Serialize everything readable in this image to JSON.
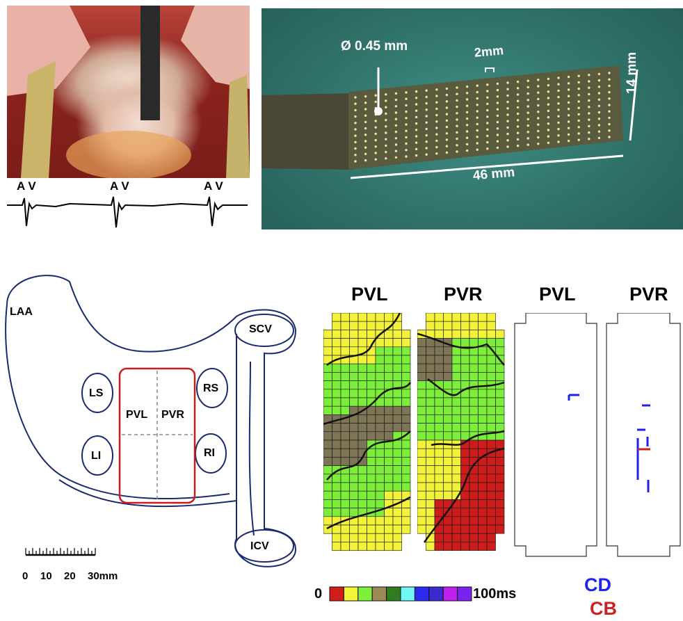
{
  "photo_left": {
    "ecg_labels": [
      "A V",
      "A V",
      "A V"
    ]
  },
  "photo_right": {
    "diameter_label": "Ø 0.45 mm",
    "spacing_label": "2mm",
    "height_label": "14 mm",
    "width_label": "46 mm"
  },
  "anatomy": {
    "laa": "LAA",
    "scv": "SCV",
    "icv": "ICV",
    "ls": "LS",
    "rs": "RS",
    "li": "LI",
    "ri": "RI",
    "pvl": "PVL",
    "pvr": "PVR",
    "scale_ticks": [
      "0",
      "10",
      "20",
      "30mm"
    ]
  },
  "maps": {
    "titles": [
      "PVL",
      "PVR",
      "PVL",
      "PVR"
    ],
    "colorbar": {
      "min_label": "0",
      "max_label": "100ms",
      "colors": [
        "#d11c1c",
        "#f3f33a",
        "#7cf03a",
        "#9b8a55",
        "#2f7d1f",
        "#6ff6f6",
        "#2a2af0",
        "#3a2ad0",
        "#c020f0",
        "#7a22f0"
      ]
    },
    "legend": {
      "cd": "CD",
      "cb": "CB",
      "cd_color": "#2222ee",
      "cb_color": "#cc2222"
    },
    "zone_colors": {
      "yellow": "#f2f23a",
      "green": "#7ced3a",
      "olive": "#7d7555",
      "red": "#cc1c1c"
    }
  }
}
